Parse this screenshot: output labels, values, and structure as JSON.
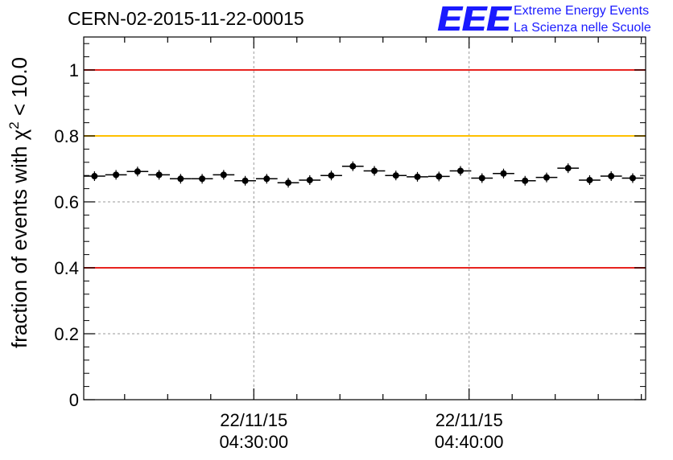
{
  "header": {
    "title": "CERN-02-2015-11-22-00015",
    "logo_mark": "EEE",
    "logo_line1": "Extreme Energy Events",
    "logo_line2": "La Scienza nelle Scuole"
  },
  "chart_data": {
    "type": "scatter",
    "title": "CERN-02-2015-11-22-00015",
    "ylabel_main": "fraction of events with χ",
    "ylabel_sup": "2",
    "ylabel_tail": " < 10.0",
    "ylim": [
      0,
      1.1
    ],
    "yticks": [
      0,
      0.2,
      0.4,
      0.6,
      0.8,
      1
    ],
    "ytick_labels": [
      "0",
      "0.2",
      "0.4",
      "0.6",
      "0.8",
      "1"
    ],
    "xlim_min": [
      22.1,
      48.2
    ],
    "xtick_min": [
      30,
      40
    ],
    "xtick_labels": [
      [
        "22/11/15",
        "04:30:00"
      ],
      [
        "22/11/15",
        "04:40:00"
      ]
    ],
    "grid": true,
    "reference_lines": [
      {
        "y": 1.0,
        "color": "#e8231f"
      },
      {
        "y": 0.8,
        "color": "#ffc000"
      },
      {
        "y": 0.4,
        "color": "#e8231f"
      }
    ],
    "bin_width_min": 1,
    "x_min": [
      22.6,
      23.6,
      24.6,
      25.6,
      26.6,
      27.6,
      28.6,
      29.6,
      30.6,
      31.6,
      32.6,
      33.6,
      34.6,
      35.6,
      36.6,
      37.6,
      38.6,
      39.6,
      40.6,
      41.6,
      42.6,
      43.6,
      44.6,
      45.6,
      46.6,
      47.6
    ],
    "values": [
      0.678,
      0.682,
      0.692,
      0.682,
      0.67,
      0.67,
      0.682,
      0.664,
      0.67,
      0.658,
      0.666,
      0.68,
      0.708,
      0.694,
      0.68,
      0.676,
      0.677,
      0.694,
      0.672,
      0.686,
      0.664,
      0.674,
      0.702,
      0.666,
      0.678,
      0.672
    ],
    "marker_color": "#000000"
  }
}
